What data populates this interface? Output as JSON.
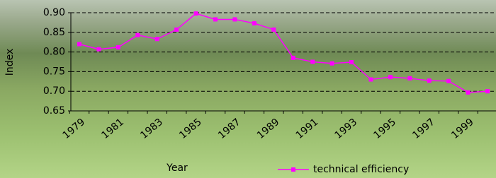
{
  "chart_data": {
    "type": "line",
    "x_label": "Year",
    "y_label": "Index",
    "categories": [
      "1979",
      null,
      "1981",
      null,
      "1983",
      null,
      "1985",
      null,
      "1987",
      null,
      "1989",
      null,
      "1991",
      null,
      "1993",
      null,
      "1995",
      null,
      "1997",
      null,
      "1999",
      null
    ],
    "series": [
      {
        "name": "technical efficiency",
        "color": "#ff00ff",
        "values": [
          0.82,
          0.807,
          0.812,
          0.843,
          0.833,
          0.857,
          0.898,
          0.883,
          0.883,
          0.873,
          0.857,
          0.785,
          0.775,
          0.771,
          0.774,
          0.73,
          0.736,
          0.733,
          0.727,
          0.726,
          0.697,
          0.7
        ]
      }
    ],
    "ylim": [
      0.65,
      0.9
    ],
    "yticks": [
      0.65,
      {
        "value": 0.7,
        "label": "0.70"
      },
      0.75,
      {
        "value": 0.8,
        "label": "0.80"
      },
      0.85,
      {
        "value": 0.9,
        "label": "0.90"
      }
    ],
    "grid": true,
    "legend": "bottom"
  }
}
